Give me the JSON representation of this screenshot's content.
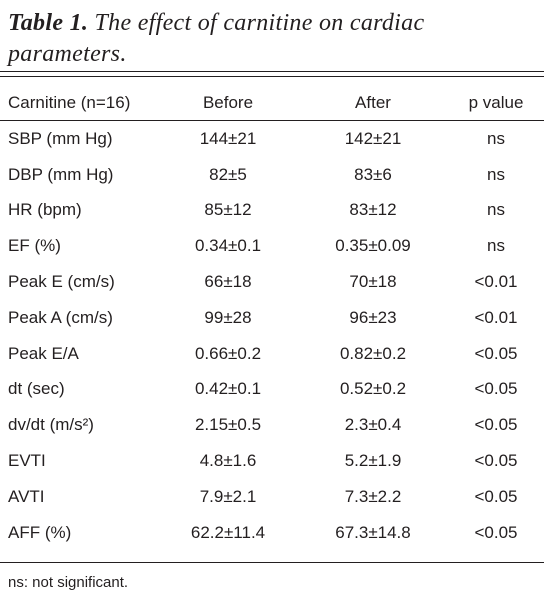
{
  "title": {
    "label": "Table 1.",
    "text": "The effect of carnitine on cardiac parameters."
  },
  "table": {
    "header": [
      "Carnitine (n=16)",
      "Before",
      "After",
      "p value"
    ],
    "rows": [
      [
        "SBP (mm Hg)",
        "144±21",
        "142±21",
        "ns"
      ],
      [
        "DBP (mm Hg)",
        "82±5",
        "83±6",
        "ns"
      ],
      [
        "HR (bpm)",
        "85±12",
        "83±12",
        "ns"
      ],
      [
        "EF (%)",
        "0.34±0.1",
        "0.35±0.09",
        "ns"
      ],
      [
        "Peak E (cm/s)",
        "66±18",
        "70±18",
        "<0.01"
      ],
      [
        "Peak A (cm/s)",
        "99±28",
        "96±23",
        "<0.01"
      ],
      [
        "Peak E/A",
        "0.66±0.2",
        "0.82±0.2",
        "<0.05"
      ],
      [
        "dt (sec)",
        "0.42±0.1",
        "0.52±0.2",
        "<0.05"
      ],
      [
        "dv/dt (m/s²)",
        "2.15±0.5",
        "2.3±0.4",
        "<0.05"
      ],
      [
        "EVTI",
        "4.8±1.6",
        "5.2±1.9",
        "<0.05"
      ],
      [
        "AVTI",
        "7.9±2.1",
        "7.3±2.2",
        "<0.05"
      ],
      [
        "AFF (%)",
        "62.2±11.4",
        "67.3±14.8",
        "<0.05"
      ]
    ]
  },
  "footnote": "ns: not significant."
}
